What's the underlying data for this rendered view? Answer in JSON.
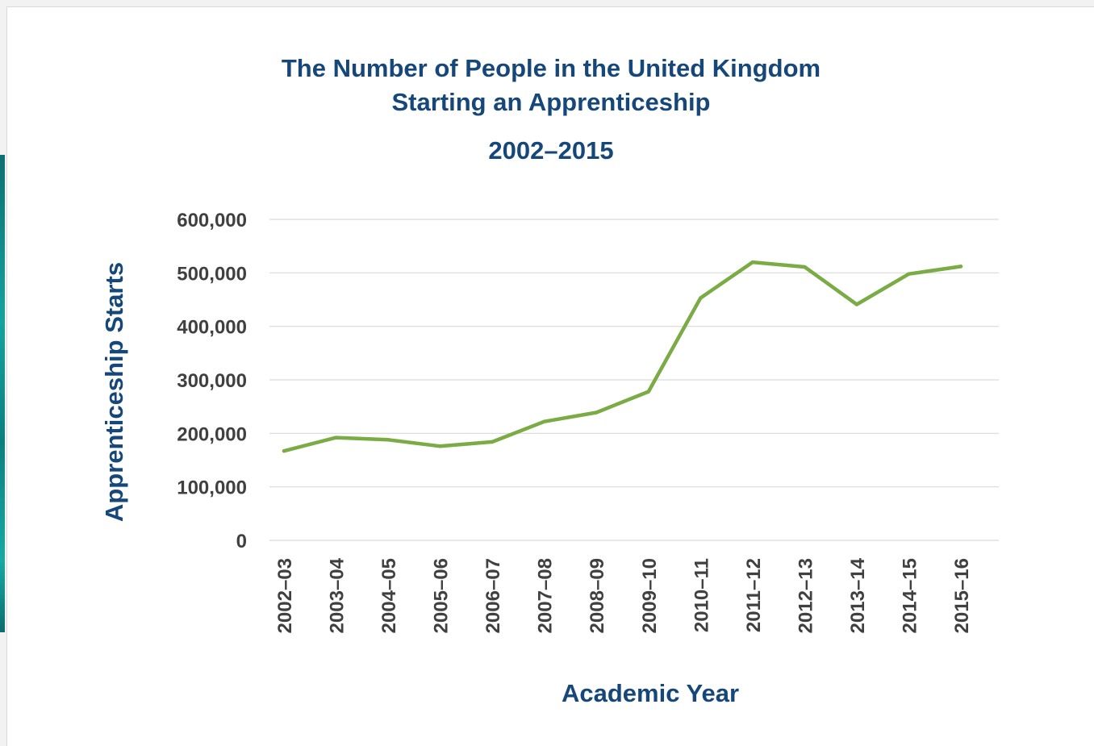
{
  "chart_data": {
    "type": "line",
    "title": "The Number of People in the United Kingdom",
    "title_line2": "Starting an Apprenticeship",
    "subtitle": "2002–2015",
    "xlabel": "Academic Year",
    "ylabel": "Apprenticeship Starts",
    "categories": [
      "2002–03",
      "2003–04",
      "2004–05",
      "2005–06",
      "2006–07",
      "2007–08",
      "2008–09",
      "2009–10",
      "2010–11",
      "2011–12",
      "2012–13",
      "2013–14",
      "2014–15",
      "2015–16"
    ],
    "series": [
      {
        "values": [
          167000,
          192000,
          188000,
          176000,
          184000,
          222000,
          239000,
          278000,
          453000,
          520000,
          511000,
          441000,
          498000,
          512000
        ],
        "color": "#7aab44"
      }
    ],
    "ylim": [
      0,
      600000
    ],
    "yticks": [
      0,
      100000,
      200000,
      300000,
      400000,
      500000,
      600000
    ],
    "ytick_labels": [
      "0",
      "100,000",
      "200,000",
      "300,000",
      "400,000",
      "500,000",
      "600,000"
    ],
    "grid": true,
    "gridline_color": "#d9d9d9",
    "title_color": "#16477a"
  }
}
